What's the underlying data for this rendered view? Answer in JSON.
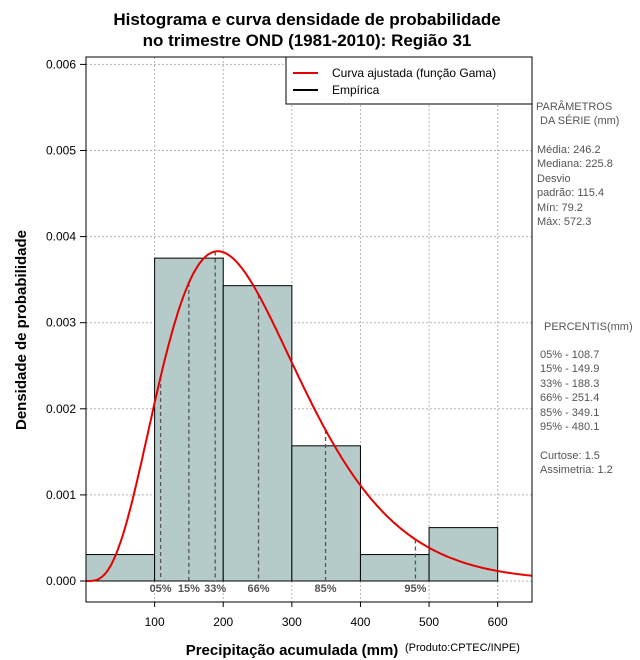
{
  "chart_data": {
    "type": "bar",
    "title_line1": "Histograma e curva densidade de probabilidade",
    "title_line2": "no trimestre OND (1981-2010): Região 31",
    "xlabel": "Precipitação acumulada (mm)",
    "ylabel": "Densidade de probabilidade",
    "credit": "(Produto:CPTEC/INPE)",
    "xlim": [
      0,
      650
    ],
    "ylim": [
      0,
      0.0061
    ],
    "x_ticks": [
      100,
      200,
      300,
      400,
      500,
      600
    ],
    "x_tick_labels": [
      "100",
      "200",
      "300",
      "400",
      "500",
      "600"
    ],
    "y_ticks": [
      0,
      0.001,
      0.002,
      0.003,
      0.004,
      0.005,
      0.006
    ],
    "y_tick_labels": [
      "0.000",
      "0.001",
      "0.002",
      "0.003",
      "0.004",
      "0.005",
      "0.006"
    ],
    "grid": true,
    "bars": [
      {
        "x0": 0,
        "x1": 100,
        "density": 0.000307
      },
      {
        "x0": 100,
        "x1": 200,
        "density": 0.00375
      },
      {
        "x0": 200,
        "x1": 300,
        "density": 0.00343
      },
      {
        "x0": 300,
        "x1": 400,
        "density": 0.00157
      },
      {
        "x0": 400,
        "x1": 500,
        "density": 0.000307
      },
      {
        "x0": 500,
        "x1": 600,
        "density": 0.00062
      }
    ],
    "bar_color": "#b4cbca",
    "curve": {
      "name": "Curva ajustada (função Gama)",
      "color": "#e60000",
      "dist": "gamma",
      "mean": 246.2,
      "sd": 115.4,
      "peak_density": 0.00383
    },
    "percentiles": [
      {
        "label": "05%",
        "x": 108.7
      },
      {
        "label": "15%",
        "x": 149.9
      },
      {
        "label": "33%",
        "x": 188.3
      },
      {
        "label": "66%",
        "x": 251.4
      },
      {
        "label": "85%",
        "x": 349.1
      },
      {
        "label": "95%",
        "x": 480.1
      }
    ],
    "legend": [
      {
        "label": "Curva ajustada (função Gama)",
        "color": "#e60000"
      },
      {
        "label": "Empírica",
        "color": "#000000"
      }
    ],
    "legend_position": "top-right"
  },
  "stats_panel": {
    "params_title_1": "PARÂMETROS",
    "params_title_2": "DA SÉRIE (mm)",
    "media": "Média:  246.2",
    "mediana": "Mediana:  225.8",
    "desvio_1": "Desvio",
    "desvio_2": "padrão:  115.4",
    "min": "Mín:  79.2",
    "max": "Máx:  572.3",
    "percentis_title": "PERCENTIS(mm)",
    "percentis": [
      "05% -  108.7",
      "15% -  149.9",
      "33% -  188.3",
      "66% -  251.4",
      "85% -  349.1",
      "95% -  480.1"
    ],
    "curtose": "Curtose:  1.5",
    "assimetria": "Assimetria:  1.2"
  }
}
